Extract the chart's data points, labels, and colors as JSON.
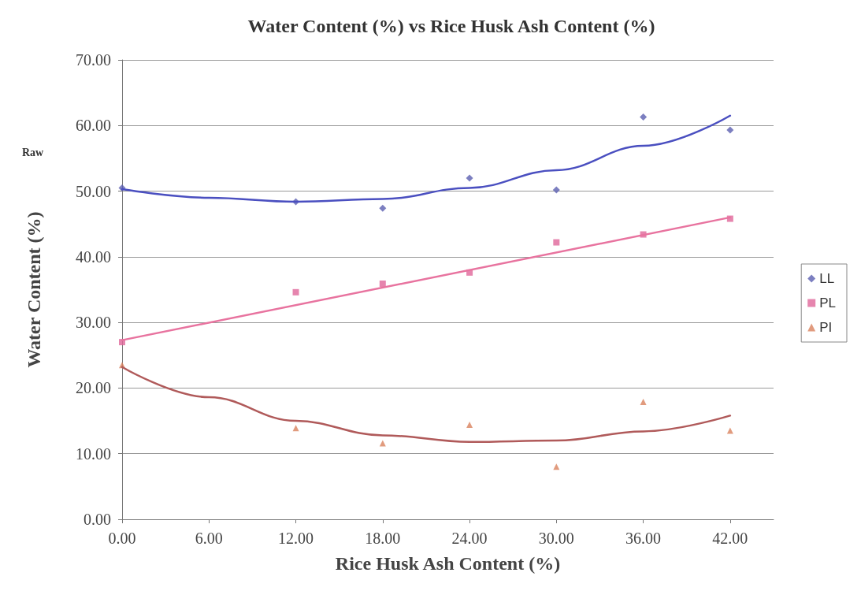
{
  "chart_data": {
    "type": "scatter",
    "title": "Water Content (%) vs Rice Husk Ash Content (%)",
    "xlabel": "Rice Husk Ash Content (%)",
    "ylabel": "Water Content (%)",
    "annotations": [
      "Raw"
    ],
    "x": [
      0,
      12,
      18,
      24,
      30,
      36,
      42
    ],
    "series": [
      {
        "name": "LL",
        "color": "#5b5fb0",
        "marker": "diamond",
        "values": [
          50.5,
          48.4,
          47.4,
          52.0,
          50.2,
          61.3,
          59.3
        ]
      },
      {
        "name": "PL",
        "color": "#e0679a",
        "marker": "square",
        "values": [
          27.0,
          34.6,
          35.9,
          37.6,
          42.2,
          43.4,
          45.8
        ]
      },
      {
        "name": "PI",
        "color": "#d9825e",
        "marker": "triangle",
        "values": [
          23.5,
          13.9,
          11.6,
          14.4,
          8.0,
          17.9,
          13.5
        ]
      },
      {
        "type": "line",
        "color": "#4a4fc0",
        "x": [
          0,
          6,
          12,
          18,
          24,
          30,
          36,
          42
        ],
        "values": [
          50.3,
          49.0,
          48.4,
          48.8,
          50.5,
          53.2,
          56.9,
          61.5
        ]
      },
      {
        "type": "line",
        "color": "#e8739f",
        "x": [
          0,
          42
        ],
        "values": [
          27.3,
          46.0
        ]
      },
      {
        "type": "line",
        "color": "#b05a5a",
        "x": [
          0,
          6,
          12,
          18,
          24,
          30,
          36,
          42
        ],
        "values": [
          23.2,
          18.6,
          15.0,
          12.8,
          11.8,
          12.0,
          13.4,
          15.8
        ]
      }
    ],
    "xlim": [
      0,
      45
    ],
    "xticks": [
      {
        "value": 0,
        "label": "0.00"
      },
      {
        "value": 6,
        "label": "6.00"
      },
      {
        "value": 12,
        "label": "12.00"
      },
      {
        "value": 18,
        "label": "18.00"
      },
      {
        "value": 24,
        "label": "24.00"
      },
      {
        "value": 30,
        "label": "30.00"
      },
      {
        "value": 36,
        "label": "36.00"
      },
      {
        "value": 42,
        "label": "42.00"
      }
    ],
    "ylim": [
      0,
      70
    ],
    "yticks": [
      {
        "value": 0,
        "label": "0.00"
      },
      {
        "value": 10,
        "label": "10.00"
      },
      {
        "value": 20,
        "label": "20.00"
      },
      {
        "value": 30,
        "label": "30.00"
      },
      {
        "value": 40,
        "label": "40.00"
      },
      {
        "value": 50,
        "label": "50.00"
      },
      {
        "value": 60,
        "label": "60.00"
      },
      {
        "value": 70,
        "label": "70.00"
      }
    ],
    "grid": "y",
    "legend": "right",
    "line_style": "solid"
  }
}
